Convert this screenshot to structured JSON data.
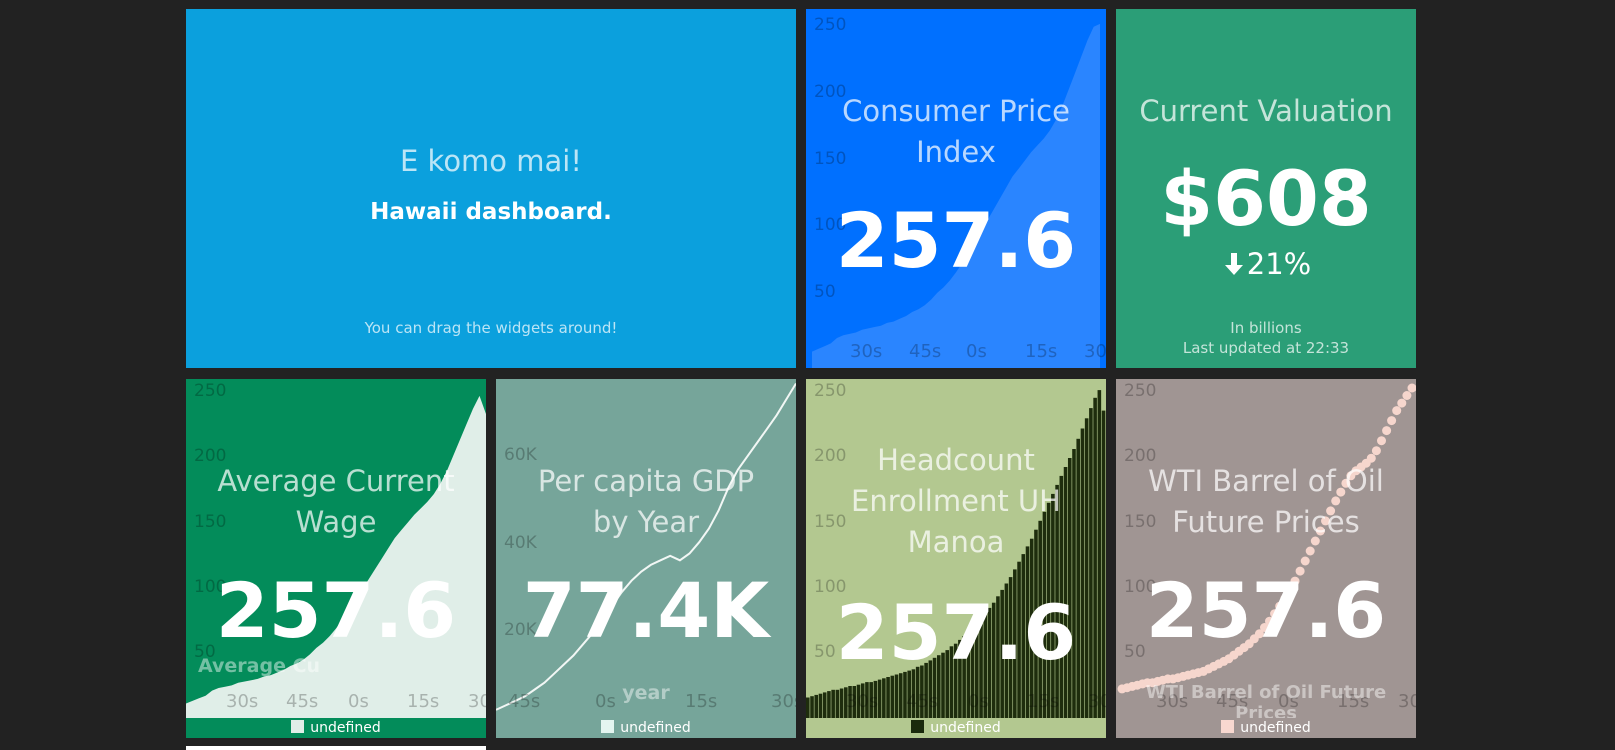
{
  "welcome": {
    "title": "E komo mai!",
    "subtitle": "Hawaii dashboard.",
    "note": "You can drag the widgets around!"
  },
  "cpi": {
    "title": "Consumer Price Index",
    "value": "257.6",
    "color": "#0070ff"
  },
  "valuation": {
    "title": "Current Valuation",
    "value": "$608",
    "change": "21%",
    "change_icon": "arrow-down-icon",
    "more_info": "In billions",
    "updated": "Last updated at 22:33"
  },
  "wage": {
    "title": "Average Current Wage",
    "value": "257.6",
    "series_label": "Average Cu",
    "legend": "undefined"
  },
  "gdp": {
    "title": "Per capita GDP by Year",
    "value": "77.4K",
    "x_axis_label": "year",
    "legend": "undefined"
  },
  "headcount": {
    "title": "Headcount Enrollment UH Manoa",
    "value": "257.6",
    "legend": "undefined"
  },
  "wti": {
    "title": "WTI Barrel of Oil Future Prices",
    "value": "257.6",
    "series_label": "WTI Barrel of Oil Future Prices",
    "legend": "undefined"
  },
  "chart_data": [
    {
      "type": "area",
      "widget": "cpi",
      "title": "",
      "yticks": [
        "250",
        "200",
        "150",
        "100",
        "50"
      ],
      "xticks": [
        "30s",
        "45s",
        "0s",
        "15s",
        "30s"
      ],
      "ylim": [
        0,
        260
      ],
      "values": [
        12,
        14,
        16,
        18,
        22,
        24,
        25,
        26,
        28,
        29,
        30,
        31,
        33,
        34,
        36,
        38,
        41,
        43,
        46,
        50,
        55,
        59,
        64,
        70,
        77,
        84,
        92,
        100,
        108,
        116,
        124,
        132,
        140,
        146,
        152,
        158,
        163,
        168,
        174,
        182,
        192,
        204,
        216,
        228,
        240,
        250,
        252
      ]
    },
    {
      "type": "area",
      "widget": "wage",
      "title": "",
      "yticks": [
        "250",
        "200",
        "150",
        "100",
        "50"
      ],
      "xticks": [
        "30s",
        "45s",
        "0s",
        "15s",
        "30s"
      ],
      "ylim": [
        0,
        260
      ],
      "values": [
        12,
        14,
        16,
        18,
        22,
        24,
        25,
        26,
        28,
        29,
        30,
        31,
        33,
        34,
        36,
        38,
        41,
        43,
        46,
        50,
        55,
        59,
        64,
        70,
        77,
        84,
        92,
        100,
        108,
        116,
        124,
        132,
        140,
        146,
        152,
        158,
        163,
        168,
        174,
        182,
        192,
        204,
        216,
        228,
        240,
        250,
        236
      ]
    },
    {
      "type": "line",
      "widget": "gdp",
      "title": "",
      "yticks": [
        "60K",
        "40K",
        "20K"
      ],
      "xticks": [
        "45s",
        "0s",
        "15s",
        "30s"
      ],
      "ylim": [
        0,
        75000
      ],
      "values": [
        2000,
        3000,
        4000,
        5000,
        6500,
        8000,
        10000,
        12000,
        14000,
        16500,
        19000,
        22000,
        25000,
        28000,
        30500,
        32500,
        34000,
        35000,
        36000,
        35000,
        36500,
        39000,
        42000,
        46000,
        51000,
        55000,
        58000,
        61000,
        64000,
        67000,
        70500,
        74000
      ]
    },
    {
      "type": "bar",
      "widget": "headcount",
      "title": "",
      "yticks": [
        "250",
        "200",
        "150",
        "100",
        "50"
      ],
      "xticks": [
        "30s",
        "45s",
        "0s",
        "15s",
        "30s"
      ],
      "ylim": [
        0,
        260
      ],
      "values": [
        16,
        17,
        18,
        19,
        20,
        21,
        22,
        22,
        23,
        24,
        25,
        25,
        26,
        27,
        28,
        28,
        29,
        30,
        31,
        32,
        33,
        34,
        35,
        36,
        37,
        38,
        40,
        41,
        43,
        45,
        47,
        49,
        51,
        53,
        56,
        58,
        61,
        64,
        67,
        70,
        74,
        78,
        82,
        86,
        90,
        95,
        100,
        105,
        110,
        116,
        122,
        128,
        134,
        140,
        147,
        154,
        161,
        168,
        175,
        182,
        189,
        196,
        203,
        210,
        218,
        226,
        234,
        242,
        250,
        256,
        240
      ]
    },
    {
      "type": "scatter",
      "widget": "wti",
      "title": "",
      "yticks": [
        "250",
        "200",
        "150",
        "100",
        "50"
      ],
      "xticks": [
        "30s",
        "45s",
        "0s",
        "15s",
        "30s"
      ],
      "ylim": [
        0,
        260
      ],
      "values": [
        16,
        17,
        18,
        19,
        20,
        21,
        21,
        22,
        23,
        24,
        24,
        25,
        26,
        27,
        28,
        29,
        30,
        32,
        34,
        36,
        38,
        40,
        43,
        46,
        49,
        52,
        56,
        60,
        65,
        70,
        76,
        82,
        88,
        95,
        102,
        110,
        118,
        126,
        134,
        142,
        150,
        158,
        166,
        173,
        180,
        186,
        190,
        193,
        196,
        200,
        206,
        214,
        222,
        230,
        238,
        244,
        250,
        256
      ]
    }
  ]
}
